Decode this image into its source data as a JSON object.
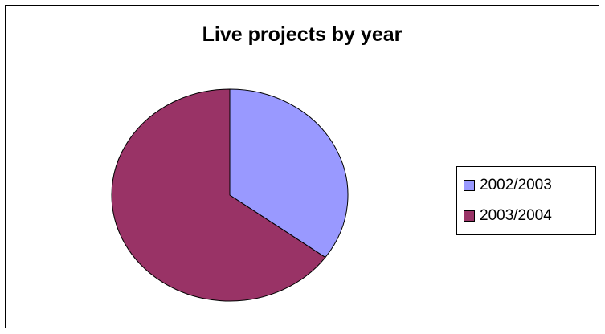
{
  "chart_data": {
    "type": "pie",
    "title": "Live projects by year",
    "categories": [
      "2002/2003",
      "2003/2004"
    ],
    "values": [
      35,
      65
    ],
    "colors": [
      "#9999ff",
      "#993366"
    ],
    "start_angle_deg": 0,
    "direction": "clockwise",
    "legend_position": "right"
  }
}
